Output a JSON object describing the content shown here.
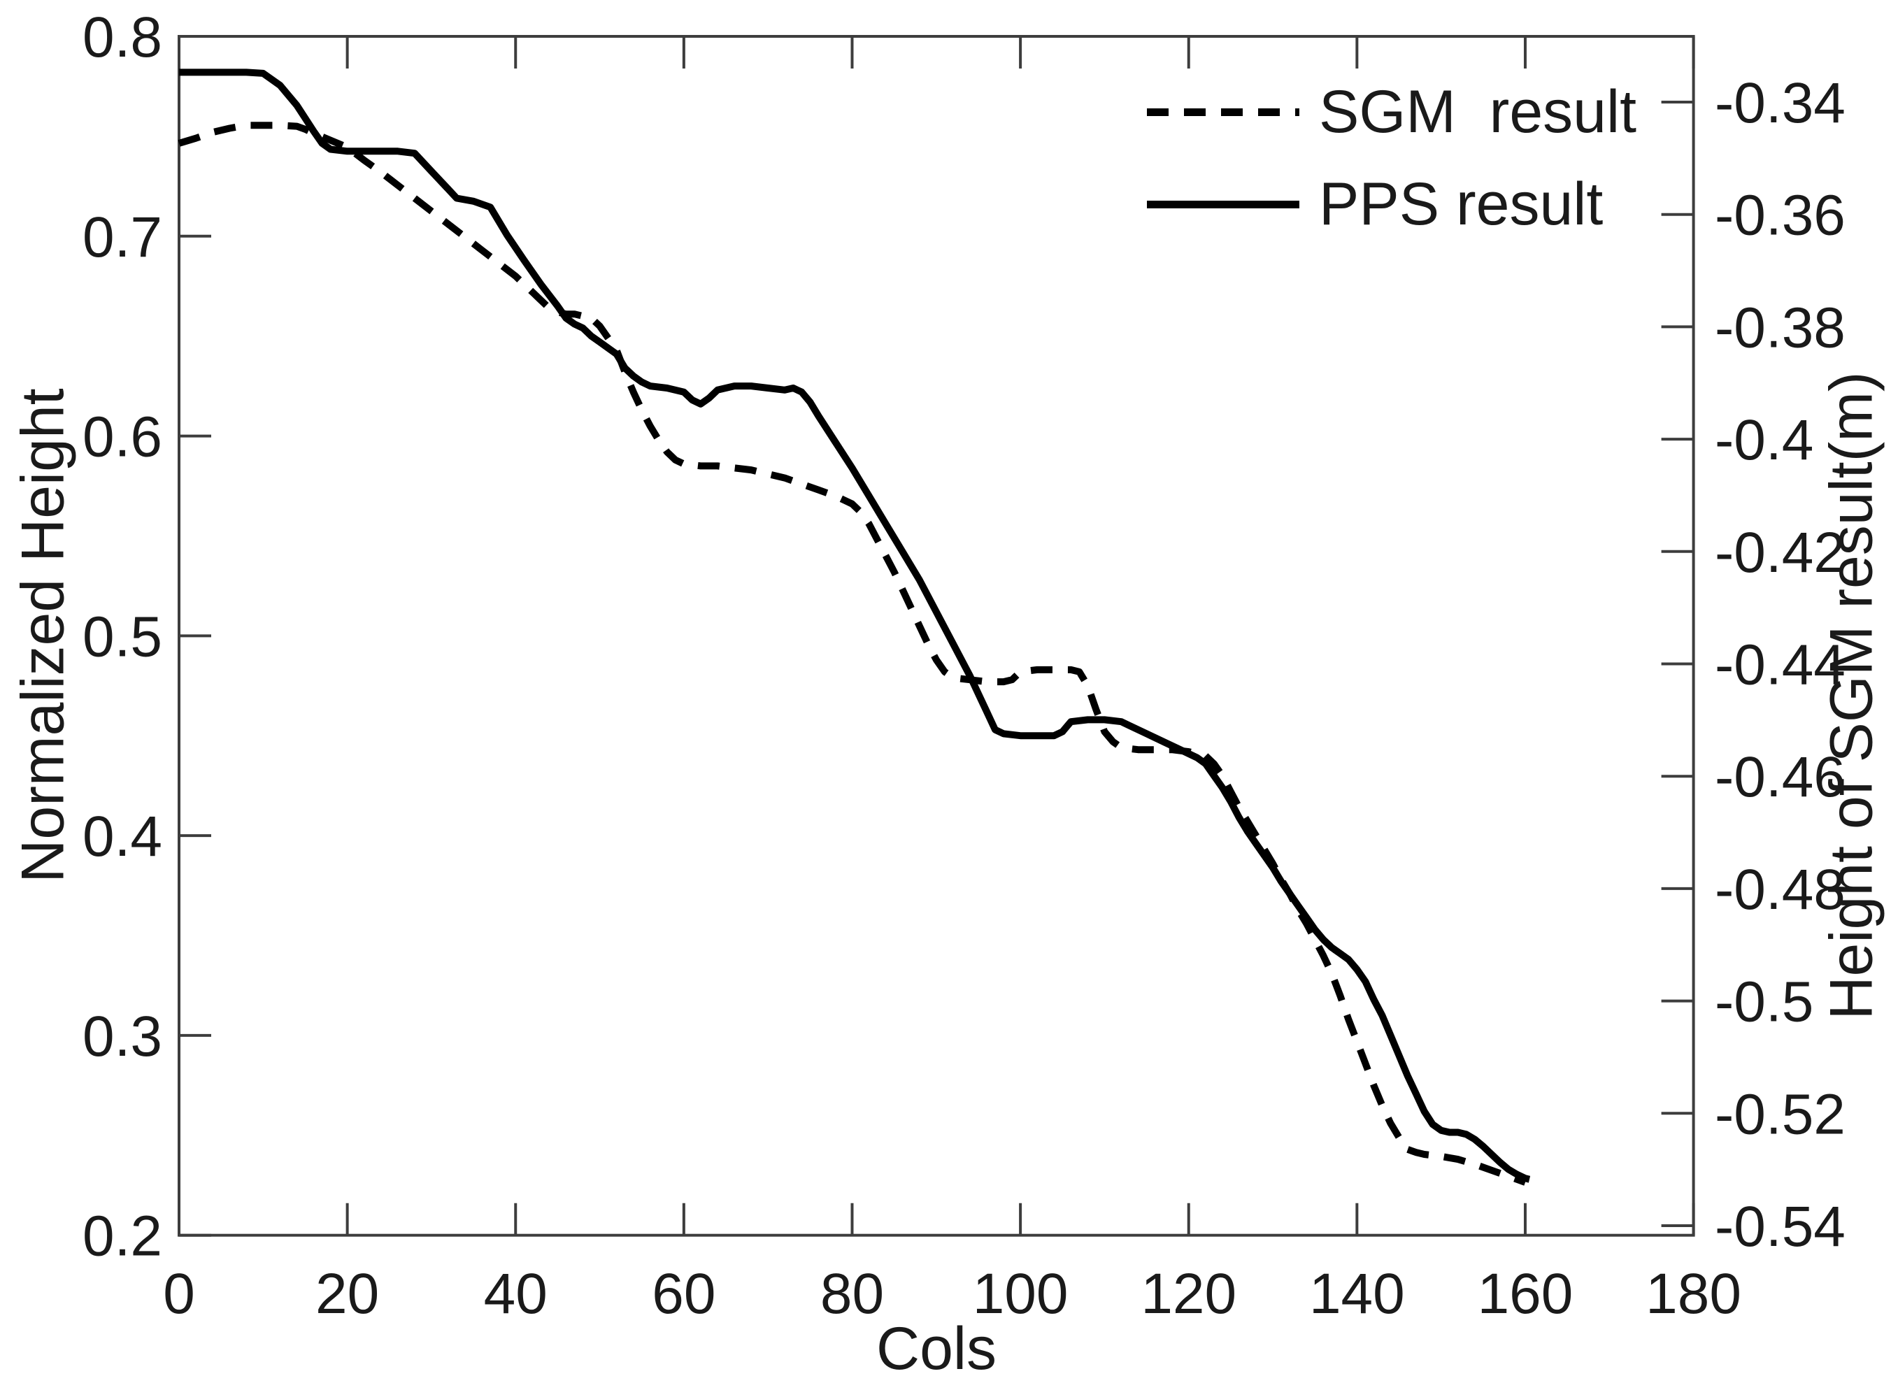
{
  "figure": {
    "background": "#ffffff",
    "frame_color": "#3d3d3d",
    "text_color": "#1a1a1a",
    "line_color": "#000000"
  },
  "chart_data": {
    "type": "line",
    "title": "",
    "xlabel": "Cols",
    "ylabel_left": "Normalized Height",
    "ylabel_right": "Height of SGM result(m)",
    "xlim": [
      0,
      180
    ],
    "ylim_left": [
      0.2,
      0.8
    ],
    "grid": false,
    "legend_position": "top-right-inside",
    "x_ticks": [
      0,
      20,
      40,
      60,
      80,
      100,
      120,
      140,
      160,
      180
    ],
    "y_ticks_left": [
      "0.8",
      "0.7",
      "0.6",
      "0.5",
      "0.4",
      "0.3",
      "0.2"
    ],
    "y_ticks_left_values": [
      0.8,
      0.7,
      0.6,
      0.5,
      0.4,
      0.3,
      0.2
    ],
    "y_ticks_right": [
      "-0.34",
      "-0.36",
      "-0.38",
      "-0.4",
      "-0.42",
      "-0.44",
      "-0.46",
      "-0.48",
      "-0.5",
      "-0.52",
      "-0.54"
    ],
    "series": [
      {
        "name": "SGM  result",
        "style": "dashed",
        "x": [
          0,
          2,
          4,
          6,
          8,
          10,
          12,
          14,
          15,
          16,
          18,
          20,
          22,
          24,
          26,
          28,
          30,
          32,
          34,
          36,
          38,
          40,
          42,
          43,
          44,
          45,
          46,
          47,
          48,
          49,
          50,
          51,
          52,
          53,
          54,
          55,
          56,
          57,
          58,
          59,
          60,
          62,
          64,
          66,
          68,
          70,
          72,
          74,
          76,
          78,
          79,
          80,
          81,
          82,
          83,
          84,
          85,
          86,
          87,
          88,
          89,
          90,
          91,
          92,
          94,
          96,
          98,
          99,
          100,
          102,
          104,
          106,
          107,
          108,
          109,
          110,
          111,
          112,
          114,
          116,
          118,
          120,
          121,
          122,
          123,
          124,
          125,
          126,
          127,
          128,
          129,
          130,
          131,
          132,
          133,
          134,
          135,
          136,
          137,
          138,
          139,
          140,
          141,
          142,
          143,
          144,
          145,
          146,
          147,
          148,
          150,
          152,
          154,
          156,
          157,
          158,
          159,
          160
        ],
        "y": [
          0.7465,
          0.749,
          0.752,
          0.754,
          0.7555,
          0.7555,
          0.7555,
          0.755,
          0.7535,
          0.7515,
          0.748,
          0.7445,
          0.738,
          0.732,
          0.7255,
          0.719,
          0.7125,
          0.706,
          0.6995,
          0.693,
          0.6865,
          0.68,
          0.672,
          0.668,
          0.664,
          0.662,
          0.661,
          0.661,
          0.66,
          0.659,
          0.655,
          0.649,
          0.643,
          0.632,
          0.622,
          0.613,
          0.605,
          0.598,
          0.592,
          0.588,
          0.586,
          0.585,
          0.585,
          0.584,
          0.583,
          0.581,
          0.579,
          0.576,
          0.573,
          0.57,
          0.568,
          0.566,
          0.562,
          0.556,
          0.548,
          0.54,
          0.532,
          0.523,
          0.514,
          0.505,
          0.496,
          0.488,
          0.482,
          0.479,
          0.478,
          0.477,
          0.477,
          0.478,
          0.482,
          0.483,
          0.483,
          0.483,
          0.482,
          0.475,
          0.463,
          0.452,
          0.447,
          0.444,
          0.443,
          0.443,
          0.443,
          0.442,
          0.441,
          0.44,
          0.436,
          0.43,
          0.422,
          0.414,
          0.407,
          0.4,
          0.393,
          0.386,
          0.378,
          0.371,
          0.363,
          0.356,
          0.348,
          0.34,
          0.331,
          0.32,
          0.308,
          0.297,
          0.286,
          0.275,
          0.265,
          0.256,
          0.249,
          0.243,
          0.2415,
          0.2405,
          0.2395,
          0.238,
          0.2355,
          0.2325,
          0.231,
          0.2295,
          0.228,
          0.2265
        ]
      },
      {
        "name": "PPS result",
        "style": "solid",
        "x": [
          0,
          2,
          4,
          6,
          8,
          10,
          12,
          14,
          15,
          16,
          17,
          18,
          20,
          22,
          24,
          26,
          28,
          30,
          32,
          33,
          35,
          37,
          39,
          41,
          43,
          45,
          46,
          47,
          48,
          49,
          50,
          51,
          52,
          53,
          54,
          55,
          56,
          58,
          60,
          61,
          62,
          63,
          64,
          66,
          68,
          70,
          72,
          73,
          74,
          75,
          76,
          78,
          80,
          82,
          84,
          86,
          88,
          90,
          92,
          94,
          96,
          97,
          98,
          100,
          102,
          104,
          105,
          106,
          108,
          110,
          112,
          113,
          115,
          117,
          119,
          121,
          122,
          123,
          124,
          125,
          126,
          127,
          128,
          129,
          130,
          131,
          132,
          133,
          134,
          135,
          136,
          137,
          138,
          139,
          140,
          141,
          142,
          143,
          144,
          145,
          146,
          147,
          148,
          149,
          150,
          151,
          152,
          153,
          154,
          155,
          156,
          157,
          158,
          159,
          160,
          160.5
        ],
        "y": [
          0.782,
          0.782,
          0.782,
          0.782,
          0.782,
          0.7815,
          0.7755,
          0.7655,
          0.759,
          0.7525,
          0.7465,
          0.7435,
          0.7425,
          0.7425,
          0.7425,
          0.7425,
          0.7415,
          0.7325,
          0.7235,
          0.719,
          0.7175,
          0.7145,
          0.7005,
          0.688,
          0.676,
          0.665,
          0.659,
          0.656,
          0.654,
          0.65,
          0.647,
          0.644,
          0.641,
          0.634,
          0.63,
          0.627,
          0.625,
          0.624,
          0.622,
          0.618,
          0.616,
          0.619,
          0.623,
          0.625,
          0.625,
          0.624,
          0.623,
          0.624,
          0.622,
          0.617,
          0.61,
          0.597,
          0.584,
          0.57,
          0.556,
          0.542,
          0.528,
          0.512,
          0.496,
          0.48,
          0.462,
          0.453,
          0.451,
          0.45,
          0.45,
          0.45,
          0.452,
          0.457,
          0.458,
          0.458,
          0.457,
          0.455,
          0.451,
          0.447,
          0.443,
          0.439,
          0.436,
          0.43,
          0.424,
          0.417,
          0.409,
          0.402,
          0.396,
          0.39,
          0.384,
          0.377,
          0.371,
          0.365,
          0.359,
          0.353,
          0.348,
          0.344,
          0.341,
          0.338,
          0.333,
          0.327,
          0.318,
          0.31,
          0.3,
          0.29,
          0.28,
          0.271,
          0.262,
          0.2555,
          0.2525,
          0.2515,
          0.2515,
          0.2505,
          0.248,
          0.2445,
          0.2405,
          0.2365,
          0.233,
          0.2305,
          0.2285,
          0.228
        ]
      }
    ]
  },
  "legend": {
    "items": [
      {
        "label": "SGM  result",
        "style": "dashed"
      },
      {
        "label": "PPS result",
        "style": "solid"
      }
    ]
  }
}
